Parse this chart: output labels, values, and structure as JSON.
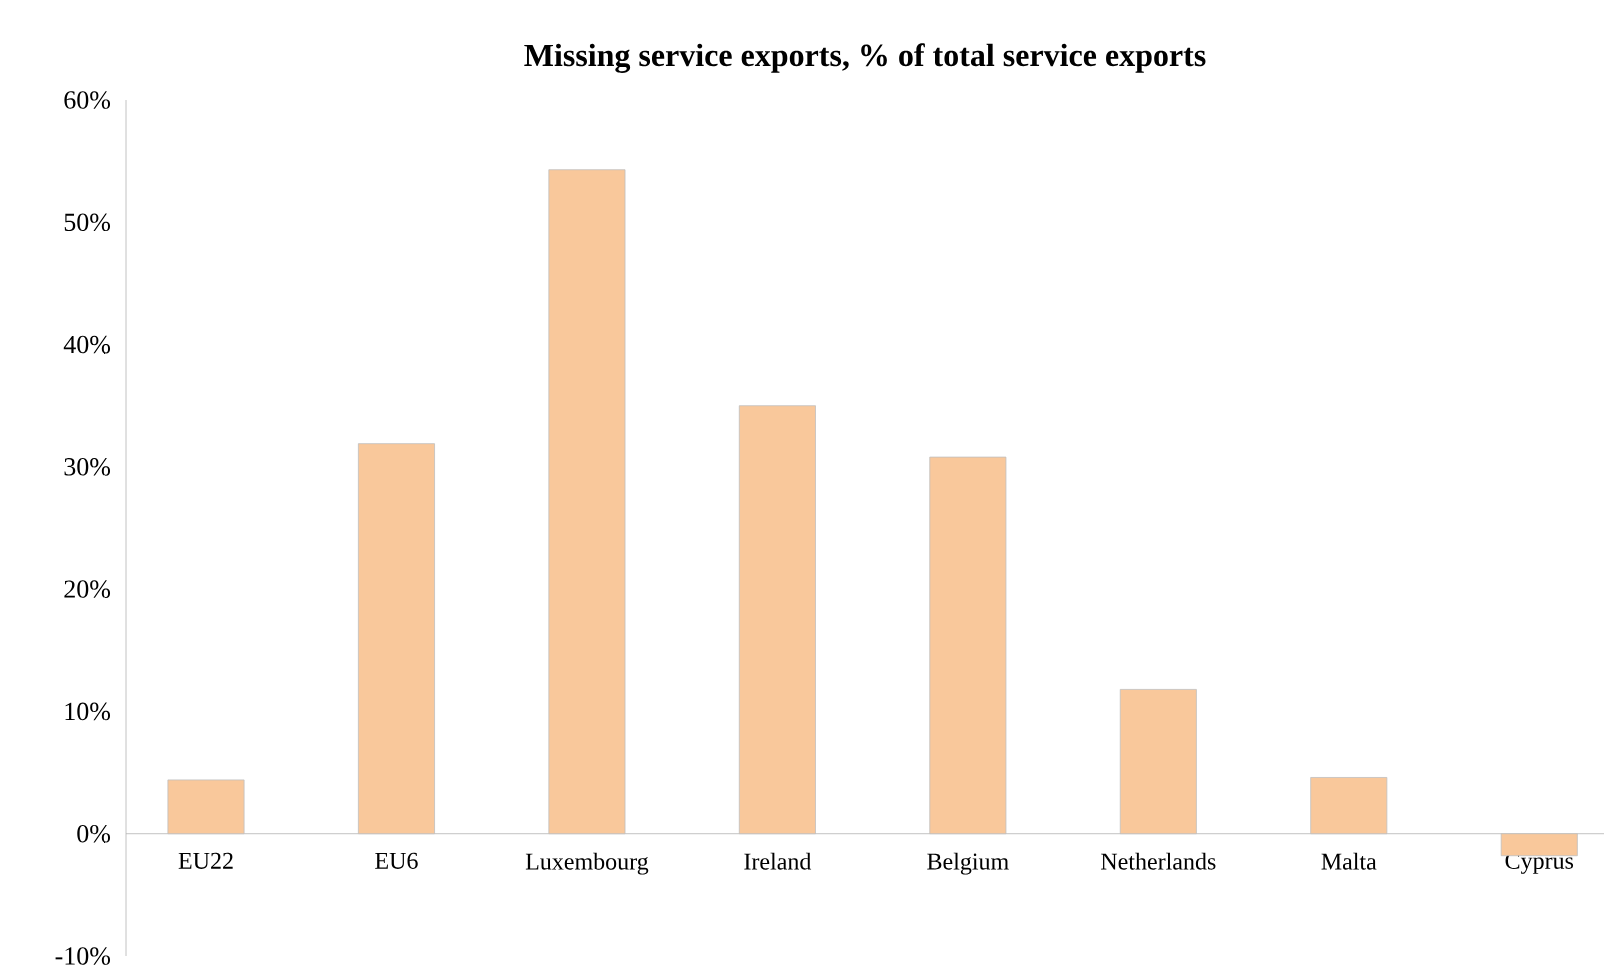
{
  "chart_data": {
    "type": "bar",
    "title": "Missing service exports, % of total service exports",
    "categories": [
      "EU22",
      "EU6",
      "Luxembourg",
      "Ireland",
      "Belgium",
      "Netherlands",
      "Malta",
      "Cyprus"
    ],
    "values": [
      4.4,
      31.9,
      54.3,
      35.0,
      30.8,
      11.8,
      4.6,
      -1.8
    ],
    "color": "#f9c89b",
    "ylim": [
      -10,
      60
    ],
    "yticks": [
      {
        "value": -10,
        "label": "-10%"
      },
      {
        "value": 0,
        "label": "0%"
      },
      {
        "value": 10,
        "label": "10%"
      },
      {
        "value": 20,
        "label": "20%"
      },
      {
        "value": 30,
        "label": "30%"
      },
      {
        "value": 40,
        "label": "40%"
      },
      {
        "value": 50,
        "label": "50%"
      },
      {
        "value": 60,
        "label": "60%"
      }
    ],
    "grid": false
  }
}
